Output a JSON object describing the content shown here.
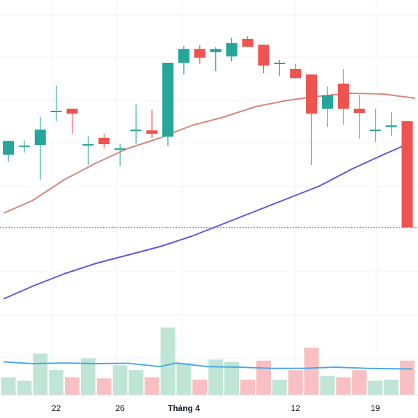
{
  "colors": {
    "up": "#26a69a",
    "down": "#ef5350",
    "volume_up": "#bfe5d6",
    "volume_down": "#f8c0c3",
    "ma_short": "#d9847a",
    "ma_long": "#5b54e6",
    "volume_ma": "#4ba7e8",
    "grid": "#f0f3fa",
    "price_line": "#ef5350",
    "text": "#131722"
  },
  "x_axis": {
    "ticks": [
      {
        "label": "22",
        "index": 3,
        "bold": false
      },
      {
        "label": "26",
        "index": 7,
        "bold": false
      },
      {
        "label": "Tháng 4",
        "index": 11,
        "bold": true
      },
      {
        "label": "12",
        "index": 18,
        "bold": false
      },
      {
        "label": "19",
        "index": 23,
        "bold": false
      }
    ]
  },
  "chart_data": {
    "type": "candlestick",
    "price_axis_range": [
      0,
      100
    ],
    "volume_axis_range": [
      0,
      100
    ],
    "last_price_line": 45.6,
    "candles": [
      {
        "o": 63.0,
        "h": 66.3,
        "l": 61.3,
        "c": 66.3
      },
      {
        "o": 65.2,
        "h": 66.4,
        "l": 63.5,
        "c": 65.2
      },
      {
        "o": 65.3,
        "h": 72.0,
        "l": 57.0,
        "c": 69.0
      },
      {
        "o": 73.5,
        "h": 79.5,
        "l": 71.0,
        "c": 73.5
      },
      {
        "o": 74.0,
        "h": 74.0,
        "l": 68.0,
        "c": 72.8
      },
      {
        "o": 65.5,
        "h": 67.5,
        "l": 60.5,
        "c": 65.5
      },
      {
        "o": 67.0,
        "h": 68.0,
        "l": 64.5,
        "c": 65.5
      },
      {
        "o": 64.5,
        "h": 65.5,
        "l": 60.3,
        "c": 64.5
      },
      {
        "o": 69.0,
        "h": 75.0,
        "l": 65.5,
        "c": 69.0
      },
      {
        "o": 68.8,
        "h": 73.7,
        "l": 67.0,
        "c": 68.0
      },
      {
        "o": 67.3,
        "h": 85.0,
        "l": 65.0,
        "c": 85.0
      },
      {
        "o": 85.0,
        "h": 89.0,
        "l": 82.2,
        "c": 88.3
      },
      {
        "o": 88.3,
        "h": 89.2,
        "l": 84.7,
        "c": 86.2
      },
      {
        "o": 87.5,
        "h": 88.7,
        "l": 83.0,
        "c": 88.3
      },
      {
        "o": 86.5,
        "h": 91.0,
        "l": 85.3,
        "c": 89.7
      },
      {
        "o": 90.7,
        "h": 91.3,
        "l": 88.7,
        "c": 88.8
      },
      {
        "o": 89.3,
        "h": 89.3,
        "l": 82.5,
        "c": 84.3
      },
      {
        "o": 85.0,
        "h": 85.7,
        "l": 81.8,
        "c": 85.0
      },
      {
        "o": 83.5,
        "h": 84.7,
        "l": 81.2,
        "c": 81.3
      },
      {
        "o": 82.2,
        "h": 82.2,
        "l": 60.5,
        "c": 72.8
      },
      {
        "o": 74.0,
        "h": 79.3,
        "l": 69.7,
        "c": 77.2
      },
      {
        "o": 80.0,
        "h": 83.5,
        "l": 70.2,
        "c": 74.0
      },
      {
        "o": 74.0,
        "h": 77.3,
        "l": 66.8,
        "c": 73.0
      },
      {
        "o": 69.0,
        "h": 74.0,
        "l": 66.0,
        "c": 69.0
      },
      {
        "o": 70.0,
        "h": 73.2,
        "l": 67.5,
        "c": 70.0
      },
      {
        "o": 71.0,
        "h": 71.0,
        "l": 45.6,
        "c": 45.6
      }
    ],
    "ma_short": [
      [
        -0.3,
        49.0
      ],
      [
        1.5,
        52.0
      ],
      [
        3.5,
        57.0
      ],
      [
        5.5,
        61.0
      ],
      [
        7.5,
        64.5
      ],
      [
        9.5,
        67.0
      ],
      [
        11.5,
        70.0
      ],
      [
        13.5,
        72.0
      ],
      [
        15.5,
        74.5
      ],
      [
        17.5,
        76.0
      ],
      [
        19.5,
        77.0
      ],
      [
        21.5,
        77.7
      ],
      [
        23.5,
        77.5
      ],
      [
        25.5,
        76.5
      ]
    ],
    "ma_long": [
      [
        -0.3,
        28.5
      ],
      [
        1.5,
        31.5
      ],
      [
        3.5,
        34.5
      ],
      [
        5.5,
        37.0
      ],
      [
        7.5,
        39.0
      ],
      [
        9.5,
        41.0
      ],
      [
        11.5,
        43.5
      ],
      [
        13.5,
        46.5
      ],
      [
        15.5,
        49.5
      ],
      [
        17.5,
        52.5
      ],
      [
        19.5,
        55.5
      ],
      [
        21.5,
        59.5
      ],
      [
        23.5,
        63.0
      ],
      [
        25.3,
        66.0
      ]
    ],
    "volumes": [
      {
        "v": 15,
        "up": true
      },
      {
        "v": 12,
        "up": true
      },
      {
        "v": 35,
        "up": true
      },
      {
        "v": 21,
        "up": true
      },
      {
        "v": 15,
        "up": false
      },
      {
        "v": 31,
        "up": true
      },
      {
        "v": 14,
        "up": false
      },
      {
        "v": 25,
        "up": true
      },
      {
        "v": 21,
        "up": true
      },
      {
        "v": 15,
        "up": false
      },
      {
        "v": 57,
        "up": true
      },
      {
        "v": 27,
        "up": true
      },
      {
        "v": 13,
        "up": false
      },
      {
        "v": 30,
        "up": true
      },
      {
        "v": 28,
        "up": true
      },
      {
        "v": 13,
        "up": false
      },
      {
        "v": 29,
        "up": false
      },
      {
        "v": 13,
        "up": true
      },
      {
        "v": 21,
        "up": false
      },
      {
        "v": 40,
        "up": false
      },
      {
        "v": 16,
        "up": true
      },
      {
        "v": 15,
        "up": false
      },
      {
        "v": 21,
        "up": false
      },
      {
        "v": 12,
        "up": true
      },
      {
        "v": 13,
        "up": true
      },
      {
        "v": 29,
        "up": false
      }
    ],
    "volume_ma": [
      [
        -0.3,
        28.0
      ],
      [
        1.5,
        26.5
      ],
      [
        3.5,
        27.0
      ],
      [
        5.5,
        26.5
      ],
      [
        7.5,
        26.8
      ],
      [
        9.5,
        24.0
      ],
      [
        10.5,
        27.0
      ],
      [
        12.5,
        24.0
      ],
      [
        14.5,
        23.5
      ],
      [
        16.5,
        22.5
      ],
      [
        18.5,
        22.5
      ],
      [
        20.5,
        23.5
      ],
      [
        22.5,
        22.5
      ],
      [
        25.3,
        22.0
      ]
    ]
  }
}
